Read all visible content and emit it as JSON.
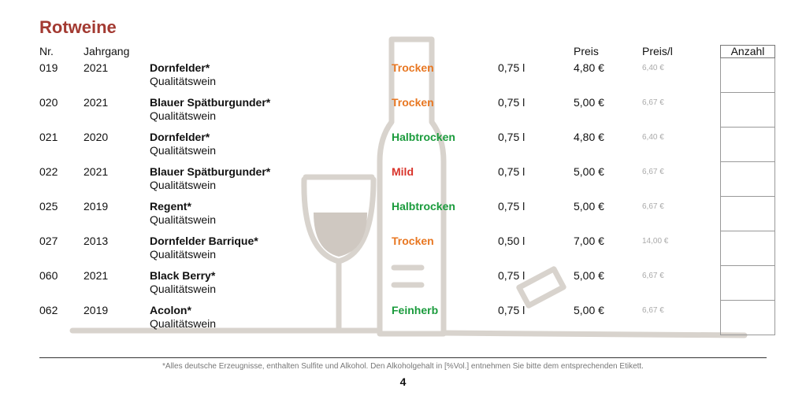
{
  "section_title": "Rotweine",
  "headers": {
    "nr": "Nr.",
    "jahrgang": "Jahrgang",
    "preis": "Preis",
    "preis_l": "Preis/l",
    "anzahl": "Anzahl"
  },
  "colors": {
    "title": "#a33a32",
    "trocken": "#e87722",
    "halbtrocken": "#1a9b3c",
    "mild": "#d9342b",
    "feinherb": "#1a9b3c",
    "watermark": "#d8d3cd"
  },
  "wines": [
    {
      "nr": "019",
      "year": "2021",
      "name": "Dornfelder*",
      "quality": "Qualitätswein",
      "taste": "Trocken",
      "taste_color": "#e87722",
      "volume": "0,75 l",
      "price": "4,80 €",
      "price_per_l": "6,40 €"
    },
    {
      "nr": "020",
      "year": "2021",
      "name": "Blauer Spätburgunder*",
      "quality": "Qualitätswein",
      "taste": "Trocken",
      "taste_color": "#e87722",
      "volume": "0,75 l",
      "price": "5,00 €",
      "price_per_l": "6,67 €"
    },
    {
      "nr": "021",
      "year": "2020",
      "name": "Dornfelder*",
      "quality": "Qualitätswein",
      "taste": "Halbtrocken",
      "taste_color": "#1a9b3c",
      "volume": "0,75 l",
      "price": "4,80 €",
      "price_per_l": "6,40 €"
    },
    {
      "nr": "022",
      "year": "2021",
      "name": "Blauer Spätburgunder*",
      "quality": "Qualitätswein",
      "taste": "Mild",
      "taste_color": "#d9342b",
      "volume": "0,75 l",
      "price": "5,00 €",
      "price_per_l": "6,67 €"
    },
    {
      "nr": "025",
      "year": "2019",
      "name": "Regent*",
      "quality": "Qualitätswein",
      "taste": "Halbtrocken",
      "taste_color": "#1a9b3c",
      "volume": "0,75 l",
      "price": "5,00 €",
      "price_per_l": "6,67 €"
    },
    {
      "nr": "027",
      "year": "2013",
      "name": "Dornfelder Barrique*",
      "quality": "Qualitätswein",
      "taste": "Trocken",
      "taste_color": "#e87722",
      "volume": "0,50 l",
      "price": "7,00 €",
      "price_per_l": "14,00 €"
    },
    {
      "nr": "060",
      "year": "2021",
      "name": "Black Berry*",
      "quality": "Qualitätswein",
      "taste": "",
      "taste_color": "#e87722",
      "volume": "0,75 l",
      "price": "5,00 €",
      "price_per_l": "6,67 €"
    },
    {
      "nr": "062",
      "year": "2019",
      "name": "Acolon*",
      "quality": "Qualitätswein",
      "taste": "Feinherb",
      "taste_color": "#1a9b3c",
      "volume": "0,75 l",
      "price": "5,00 €",
      "price_per_l": "6,67 €"
    }
  ],
  "footnote": "*Alles deutsche Erzeugnisse, enthalten Sulfite und Alkohol. Den Alkoholgehalt in [%Vol.] entnehmen Sie bitte dem entsprechenden Etikett.",
  "page_number": "4"
}
